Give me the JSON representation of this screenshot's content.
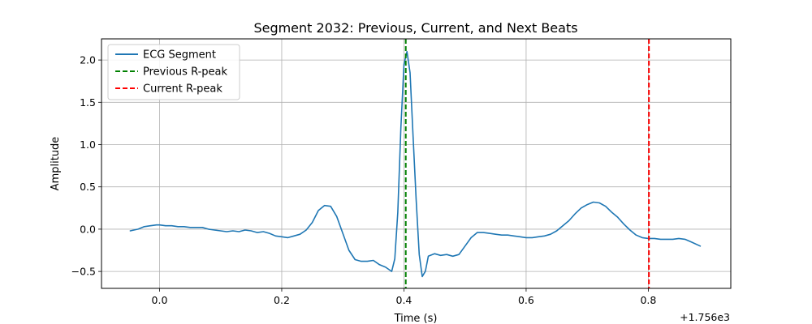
{
  "chart_data": {
    "type": "line",
    "title": "Segment 2032: Previous, Current, and Next Beats",
    "xlabel": "Time (s)",
    "ylabel": "Amplitude",
    "x_offset_label": "+1.756e3",
    "xlim": [
      -0.095,
      0.935
    ],
    "ylim": [
      -0.7,
      2.25
    ],
    "x_ticks": [
      0.0,
      0.2,
      0.4,
      0.6,
      0.8
    ],
    "x_tick_labels": [
      "0.0",
      "0.2",
      "0.4",
      "0.6",
      "0.8"
    ],
    "y_ticks": [
      -0.5,
      0.0,
      0.5,
      1.0,
      1.5,
      2.0
    ],
    "y_tick_labels": [
      "−0.5",
      "0.0",
      "0.5",
      "1.0",
      "1.5",
      "2.0"
    ],
    "grid": true,
    "legend_position": "top-left",
    "series": [
      {
        "name": "ECG Segment",
        "color": "#1f77b4",
        "style": "solid",
        "x": [
          -0.048,
          -0.035,
          -0.025,
          -0.015,
          -0.005,
          0.0,
          0.01,
          0.02,
          0.03,
          0.04,
          0.05,
          0.06,
          0.07,
          0.08,
          0.09,
          0.1,
          0.11,
          0.12,
          0.13,
          0.14,
          0.15,
          0.16,
          0.17,
          0.18,
          0.19,
          0.2,
          0.21,
          0.22,
          0.23,
          0.24,
          0.25,
          0.26,
          0.27,
          0.28,
          0.29,
          0.3,
          0.31,
          0.32,
          0.33,
          0.34,
          0.35,
          0.36,
          0.37,
          0.38,
          0.385,
          0.39,
          0.395,
          0.4,
          0.405,
          0.41,
          0.415,
          0.42,
          0.425,
          0.43,
          0.435,
          0.44,
          0.45,
          0.46,
          0.47,
          0.48,
          0.49,
          0.5,
          0.51,
          0.52,
          0.53,
          0.54,
          0.55,
          0.56,
          0.57,
          0.58,
          0.59,
          0.6,
          0.61,
          0.62,
          0.63,
          0.64,
          0.65,
          0.66,
          0.67,
          0.68,
          0.69,
          0.7,
          0.71,
          0.72,
          0.73,
          0.74,
          0.75,
          0.76,
          0.77,
          0.78,
          0.79,
          0.8,
          0.81,
          0.82,
          0.83,
          0.84,
          0.85,
          0.86,
          0.87,
          0.885
        ],
        "y": [
          -0.02,
          0.0,
          0.03,
          0.04,
          0.05,
          0.05,
          0.04,
          0.04,
          0.03,
          0.03,
          0.02,
          0.02,
          0.02,
          0.0,
          -0.01,
          -0.02,
          -0.03,
          -0.02,
          -0.03,
          -0.01,
          -0.02,
          -0.04,
          -0.03,
          -0.05,
          -0.08,
          -0.09,
          -0.1,
          -0.08,
          -0.06,
          -0.01,
          0.08,
          0.22,
          0.28,
          0.27,
          0.15,
          -0.05,
          -0.25,
          -0.36,
          -0.38,
          -0.38,
          -0.37,
          -0.42,
          -0.45,
          -0.5,
          -0.35,
          0.2,
          1.2,
          1.95,
          2.1,
          1.85,
          1.1,
          0.35,
          -0.3,
          -0.56,
          -0.5,
          -0.32,
          -0.29,
          -0.31,
          -0.3,
          -0.32,
          -0.3,
          -0.2,
          -0.1,
          -0.04,
          -0.04,
          -0.05,
          -0.06,
          -0.07,
          -0.07,
          -0.08,
          -0.09,
          -0.1,
          -0.1,
          -0.09,
          -0.08,
          -0.06,
          -0.02,
          0.04,
          0.1,
          0.18,
          0.25,
          0.29,
          0.32,
          0.31,
          0.27,
          0.2,
          0.14,
          0.06,
          -0.01,
          -0.07,
          -0.1,
          -0.11,
          -0.11,
          -0.12,
          -0.12,
          -0.12,
          -0.11,
          -0.12,
          -0.15,
          -0.2
        ]
      },
      {
        "name": "Previous R-peak",
        "color": "#008000",
        "style": "dashed",
        "vline_x": 0.403
      },
      {
        "name": "Current R-peak",
        "color": "#ff0000",
        "style": "dashed",
        "vline_x": 0.801
      }
    ]
  }
}
